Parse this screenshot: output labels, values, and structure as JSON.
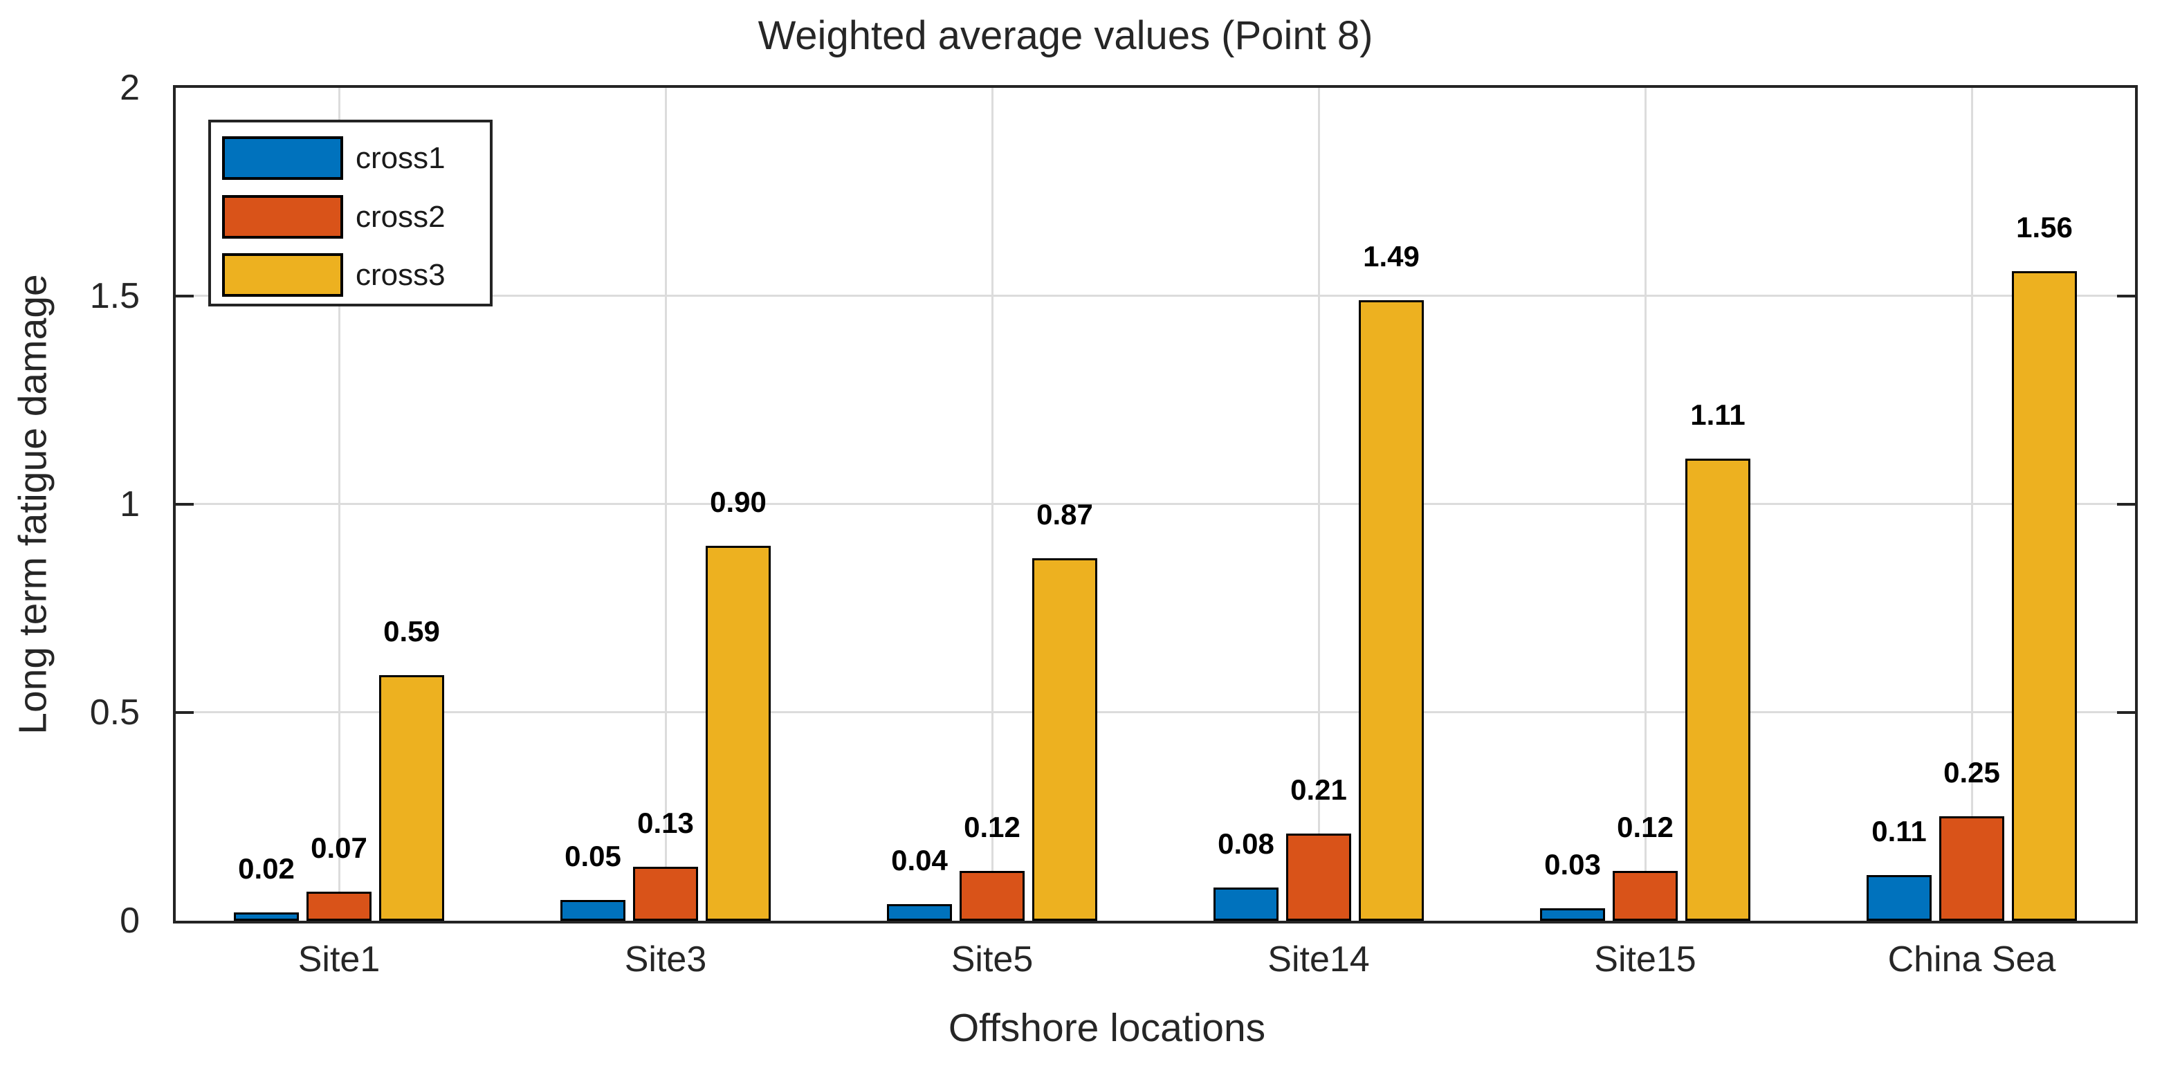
{
  "chart_data": {
    "type": "bar",
    "title": "Weighted average values (Point 8)",
    "xlabel": "Offshore locations",
    "ylabel": "Long term fatigue damage",
    "categories": [
      "Site1",
      "Site3",
      "Site5",
      "Site14",
      "Site15",
      "China Sea"
    ],
    "series": [
      {
        "name": "cross1",
        "color": "#0072BD",
        "values": [
          0.02,
          0.05,
          0.04,
          0.08,
          0.03,
          0.11
        ]
      },
      {
        "name": "cross2",
        "color": "#D95319",
        "values": [
          0.07,
          0.13,
          0.12,
          0.21,
          0.12,
          0.25
        ]
      },
      {
        "name": "cross3",
        "color": "#EDB120",
        "values": [
          0.59,
          0.9,
          0.87,
          1.49,
          1.11,
          1.56
        ]
      }
    ],
    "bar_value_labels": [
      "0.02",
      "0.07",
      "0.59",
      "0.05",
      "0.13",
      "0.90",
      "0.04",
      "0.12",
      "0.87",
      "0.08",
      "0.21",
      "1.49",
      "0.03",
      "0.12",
      "1.11",
      "0.11",
      "0.25",
      "1.56"
    ],
    "ylim": [
      0,
      2
    ],
    "yticks": [
      0,
      0.5,
      1,
      1.5,
      2
    ],
    "ytick_labels": [
      "0",
      "0.5",
      "1",
      "1.5",
      "2"
    ],
    "grid": true,
    "legend_position": "top-left",
    "legend_entries": [
      "cross1",
      "cross2",
      "cross3"
    ],
    "colors": {
      "bar_edge": "#000000",
      "axis": "#242424",
      "grid": "#dcdcdc",
      "background": "#ffffff"
    }
  }
}
